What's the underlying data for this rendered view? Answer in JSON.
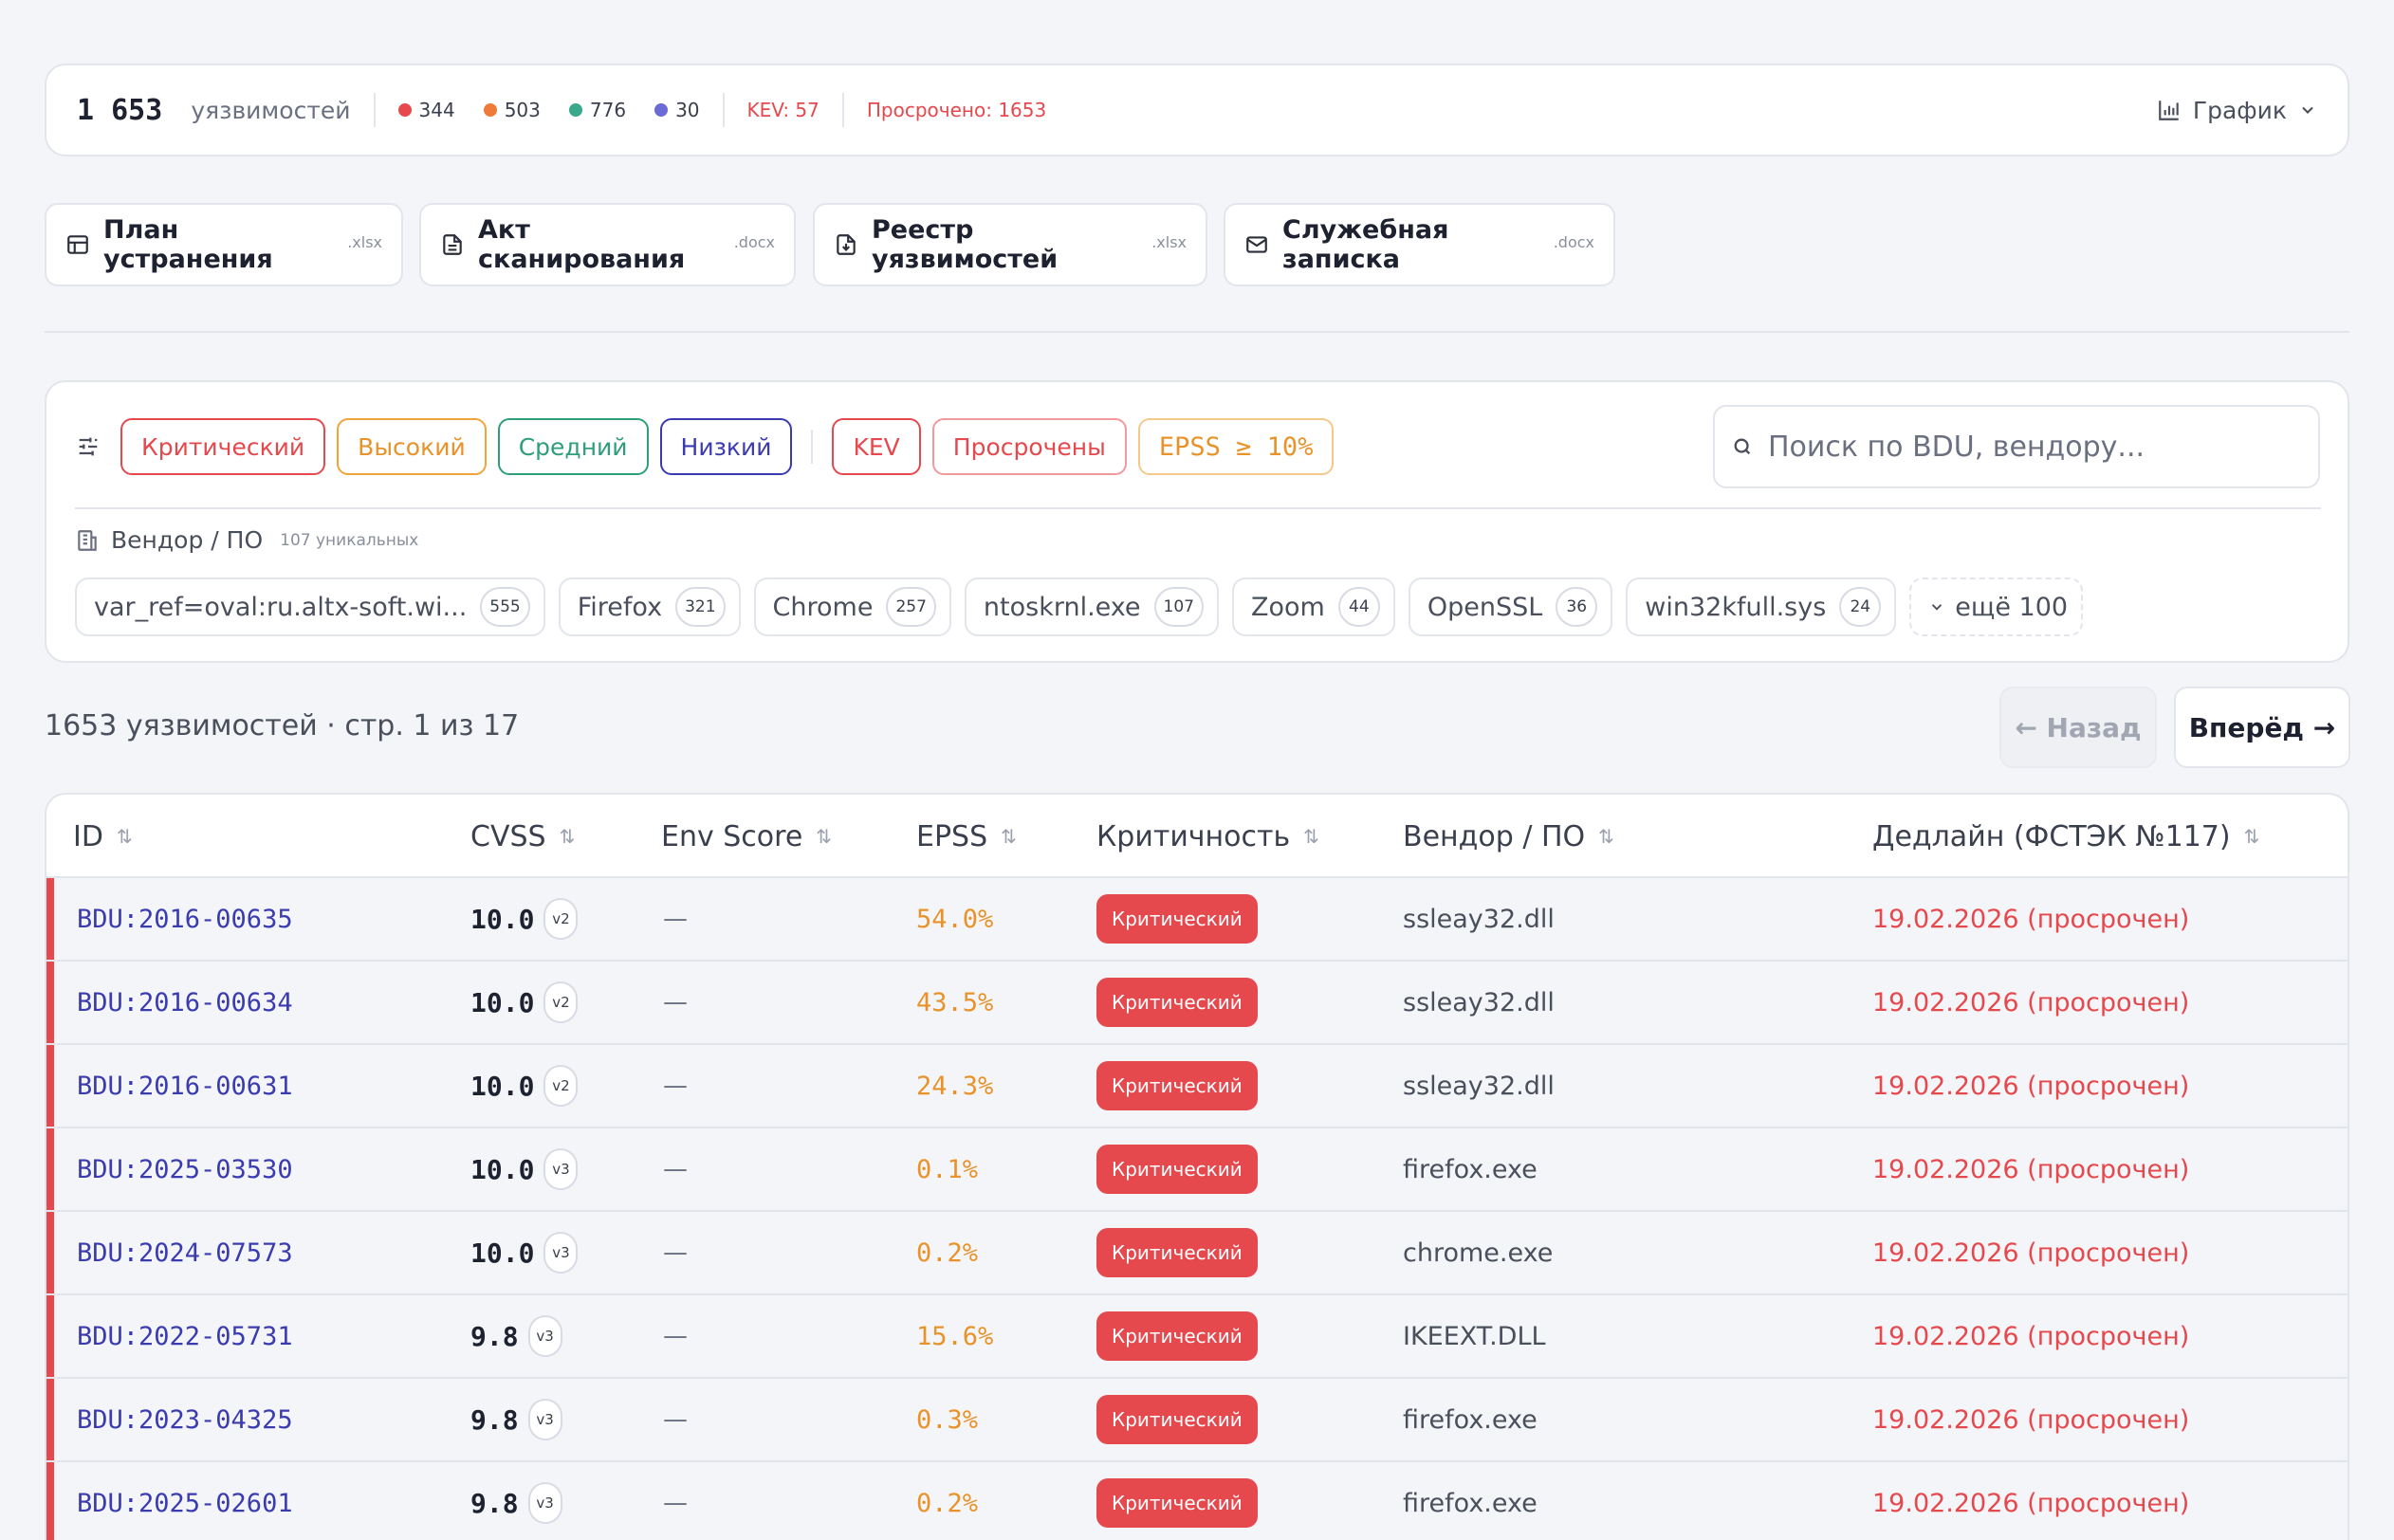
{
  "stats": {
    "total": "1 653",
    "label": "уязвимостей",
    "severities": [
      {
        "name": "critical",
        "count": "344",
        "color": "#e5484d"
      },
      {
        "name": "high",
        "count": "503",
        "color": "#f07a3a"
      },
      {
        "name": "medium",
        "count": "776",
        "color": "#3aa88a"
      },
      {
        "name": "low",
        "count": "30",
        "color": "#6b6bd6"
      }
    ],
    "kev": "KEV: 57",
    "overdue": "Просрочено: 1653",
    "chart_toggle": "График"
  },
  "reports": [
    {
      "title": "План устранения",
      "ext": ".xlsx",
      "icon": "table-icon"
    },
    {
      "title": "Акт сканирования",
      "ext": ".docx",
      "icon": "document-icon"
    },
    {
      "title": "Реестр уязвимостей",
      "ext": ".xlsx",
      "icon": "file-download-icon"
    },
    {
      "title": "Служебная записка",
      "ext": ".docx",
      "icon": "mail-icon"
    }
  ],
  "filters": {
    "severity_chips": [
      "Критический",
      "Высокий",
      "Средний",
      "Низкий"
    ],
    "extra_chips": [
      "KEV",
      "Просрочены",
      "EPSS ≥ 10%"
    ],
    "search_placeholder": "Поиск по BDU, вендору...",
    "vendor_title": "Вендор / ПО",
    "vendor_unique": "107 уникальных",
    "vendors": [
      {
        "name": "var_ref=oval:ru.altx-soft.wi...",
        "count": "555"
      },
      {
        "name": "Firefox",
        "count": "321"
      },
      {
        "name": "Chrome",
        "count": "257"
      },
      {
        "name": "ntoskrnl.exe",
        "count": "107"
      },
      {
        "name": "Zoom",
        "count": "44"
      },
      {
        "name": "OpenSSL",
        "count": "36"
      },
      {
        "name": "win32kfull.sys",
        "count": "24"
      }
    ],
    "more": "ещё 100"
  },
  "pagination": {
    "summary": "1653 уязвимостей · стр. 1 из 17",
    "back": "← Назад",
    "next": "Вперёд →"
  },
  "table": {
    "columns": [
      "ID",
      "CVSS",
      "Env Score",
      "EPSS",
      "Критичность",
      "Вендор / ПО",
      "Дедлайн (ФСТЭК №117)"
    ],
    "rows": [
      {
        "id": "BDU:2016-00635",
        "cvss": "10.0",
        "ver": "v2",
        "env": "—",
        "epss": "54.0%",
        "severity": "Критический",
        "vendor": "ssleay32.dll",
        "deadline": "19.02.2026 (просрочен)"
      },
      {
        "id": "BDU:2016-00634",
        "cvss": "10.0",
        "ver": "v2",
        "env": "—",
        "epss": "43.5%",
        "severity": "Критический",
        "vendor": "ssleay32.dll",
        "deadline": "19.02.2026 (просрочен)"
      },
      {
        "id": "BDU:2016-00631",
        "cvss": "10.0",
        "ver": "v2",
        "env": "—",
        "epss": "24.3%",
        "severity": "Критический",
        "vendor": "ssleay32.dll",
        "deadline": "19.02.2026 (просрочен)"
      },
      {
        "id": "BDU:2025-03530",
        "cvss": "10.0",
        "ver": "v3",
        "env": "—",
        "epss": "0.1%",
        "severity": "Критический",
        "vendor": "firefox.exe",
        "deadline": "19.02.2026 (просрочен)"
      },
      {
        "id": "BDU:2024-07573",
        "cvss": "10.0",
        "ver": "v3",
        "env": "—",
        "epss": "0.2%",
        "severity": "Критический",
        "vendor": "chrome.exe",
        "deadline": "19.02.2026 (просрочен)"
      },
      {
        "id": "BDU:2022-05731",
        "cvss": "9.8",
        "ver": "v3",
        "env": "—",
        "epss": "15.6%",
        "severity": "Критический",
        "vendor": "IKEEXT.DLL",
        "deadline": "19.02.2026 (просрочен)"
      },
      {
        "id": "BDU:2023-04325",
        "cvss": "9.8",
        "ver": "v3",
        "env": "—",
        "epss": "0.3%",
        "severity": "Критический",
        "vendor": "firefox.exe",
        "deadline": "19.02.2026 (просрочен)"
      },
      {
        "id": "BDU:2025-02601",
        "cvss": "9.8",
        "ver": "v3",
        "env": "—",
        "epss": "0.2%",
        "severity": "Критический",
        "vendor": "firefox.exe",
        "deadline": "19.02.2026 (просрочен)"
      }
    ]
  }
}
